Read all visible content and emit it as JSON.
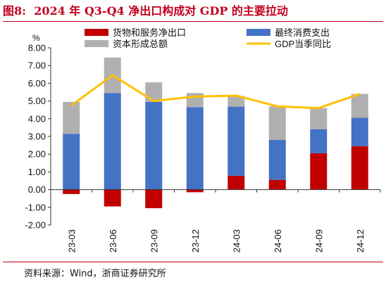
{
  "figure": {
    "label": "图8:",
    "title": "2024 年 Q3-Q4 净出口构成对 GDP 的主要拉动",
    "source": "资料来源：Wind，浙商证券研究所"
  },
  "colors": {
    "accent": "#c0001d",
    "net_export": "#c00000",
    "consumption": "#4472c4",
    "capital": "#b0b0b0",
    "gdp": "#ffc000"
  },
  "chart_data": {
    "type": "bar",
    "stacked": true,
    "y_unit": "%",
    "ylim": [
      -2,
      8
    ],
    "yticks": [
      "8.00",
      "7.00",
      "6.00",
      "5.00",
      "4.00",
      "3.00",
      "2.00",
      "1.00",
      "0.00",
      "-1.00",
      "-2.00"
    ],
    "categories": [
      "23-03",
      "23-06",
      "23-09",
      "23-12",
      "24-03",
      "24-06",
      "24-09",
      "24-12"
    ],
    "legend_position": "top",
    "series": [
      {
        "name": "货物和服务净出口",
        "kind": "bar",
        "color": "#c00000",
        "values": [
          -0.25,
          -0.95,
          -1.05,
          -0.15,
          0.78,
          0.55,
          2.05,
          2.45
        ]
      },
      {
        "name": "最终消费支出",
        "kind": "bar",
        "color": "#4472c4",
        "values": [
          3.15,
          5.45,
          4.95,
          4.65,
          3.9,
          2.25,
          1.35,
          1.6
        ]
      },
      {
        "name": "资本形成总额",
        "kind": "bar",
        "color": "#b0b0b0",
        "values": [
          1.8,
          2.0,
          1.1,
          0.8,
          0.6,
          1.9,
          1.2,
          1.35
        ]
      },
      {
        "name": "GDP当季同比",
        "kind": "line",
        "color": "#ffc000",
        "values": [
          4.75,
          6.45,
          5.0,
          5.25,
          5.3,
          4.7,
          4.6,
          5.4
        ]
      }
    ]
  }
}
